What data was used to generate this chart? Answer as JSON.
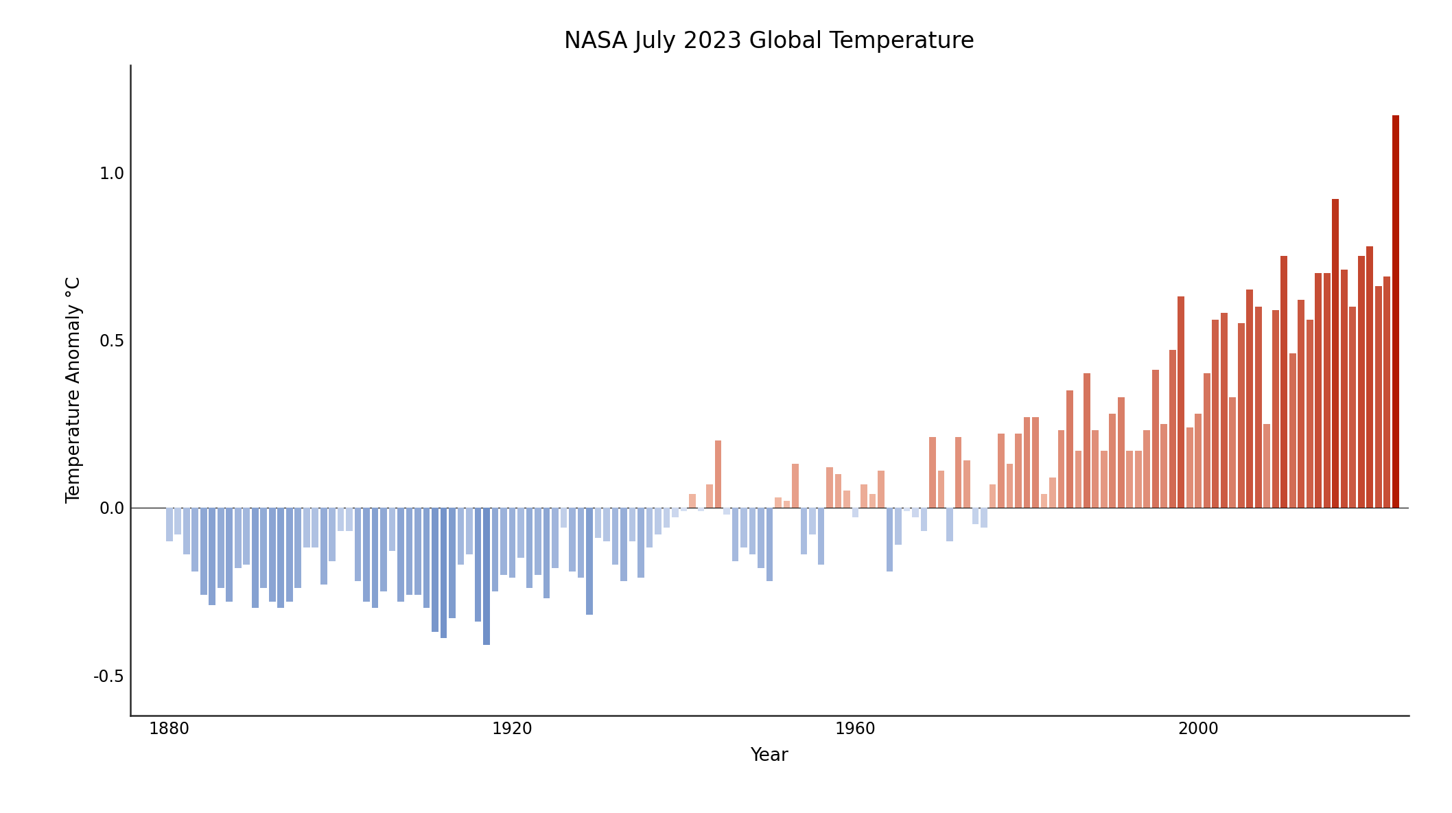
{
  "title": "NASA July 2023 Global Temperature",
  "xlabel": "Year",
  "ylabel": "Temperature Anomaly °C",
  "ylim": [
    -0.62,
    1.32
  ],
  "xlim": [
    1875.5,
    2024.5
  ],
  "years": [
    1880,
    1881,
    1882,
    1883,
    1884,
    1885,
    1886,
    1887,
    1888,
    1889,
    1890,
    1891,
    1892,
    1893,
    1894,
    1895,
    1896,
    1897,
    1898,
    1899,
    1900,
    1901,
    1902,
    1903,
    1904,
    1905,
    1906,
    1907,
    1908,
    1909,
    1910,
    1911,
    1912,
    1913,
    1914,
    1915,
    1916,
    1917,
    1918,
    1919,
    1920,
    1921,
    1922,
    1923,
    1924,
    1925,
    1926,
    1927,
    1928,
    1929,
    1930,
    1931,
    1932,
    1933,
    1934,
    1935,
    1936,
    1937,
    1938,
    1939,
    1940,
    1941,
    1942,
    1943,
    1944,
    1945,
    1946,
    1947,
    1948,
    1949,
    1950,
    1951,
    1952,
    1953,
    1954,
    1955,
    1956,
    1957,
    1958,
    1959,
    1960,
    1961,
    1962,
    1963,
    1964,
    1965,
    1966,
    1967,
    1968,
    1969,
    1970,
    1971,
    1972,
    1973,
    1974,
    1975,
    1976,
    1977,
    1978,
    1979,
    1980,
    1981,
    1982,
    1983,
    1984,
    1985,
    1986,
    1987,
    1988,
    1989,
    1990,
    1991,
    1992,
    1993,
    1994,
    1995,
    1996,
    1997,
    1998,
    1999,
    2000,
    2001,
    2002,
    2003,
    2004,
    2005,
    2006,
    2007,
    2008,
    2009,
    2010,
    2011,
    2012,
    2013,
    2014,
    2015,
    2016,
    2017,
    2018,
    2019,
    2020,
    2021,
    2022,
    2023
  ],
  "anomalies": [
    -0.1,
    -0.08,
    -0.14,
    -0.19,
    -0.26,
    -0.29,
    -0.24,
    -0.28,
    -0.18,
    -0.17,
    -0.3,
    -0.24,
    -0.28,
    -0.3,
    -0.28,
    -0.24,
    -0.12,
    -0.12,
    -0.23,
    -0.16,
    -0.07,
    -0.07,
    -0.22,
    -0.28,
    -0.3,
    -0.25,
    -0.13,
    -0.28,
    -0.26,
    -0.26,
    -0.3,
    -0.37,
    -0.39,
    -0.33,
    -0.17,
    -0.14,
    -0.34,
    -0.41,
    -0.25,
    -0.2,
    -0.21,
    -0.15,
    -0.24,
    -0.2,
    -0.27,
    -0.18,
    -0.06,
    -0.19,
    -0.21,
    -0.32,
    -0.09,
    -0.1,
    -0.17,
    -0.22,
    -0.1,
    -0.21,
    -0.12,
    -0.08,
    -0.06,
    -0.03,
    -0.01,
    0.04,
    -0.01,
    0.07,
    0.2,
    -0.02,
    -0.16,
    -0.12,
    -0.14,
    -0.18,
    -0.22,
    0.03,
    0.02,
    0.13,
    -0.14,
    -0.08,
    -0.17,
    0.12,
    0.1,
    0.05,
    -0.03,
    0.07,
    0.04,
    0.11,
    -0.19,
    -0.11,
    -0.01,
    -0.03,
    -0.07,
    0.21,
    0.11,
    -0.1,
    0.21,
    0.14,
    -0.05,
    -0.06,
    0.07,
    0.22,
    0.13,
    0.22,
    0.27,
    0.27,
    0.04,
    0.09,
    0.23,
    0.35,
    0.17,
    0.4,
    0.23,
    0.17,
    0.28,
    0.33,
    0.17,
    0.17,
    0.23,
    0.41,
    0.25,
    0.47,
    0.63,
    0.24,
    0.28,
    0.4,
    0.56,
    0.58,
    0.33,
    0.55,
    0.65,
    0.6,
    0.25,
    0.59,
    0.75,
    0.46,
    0.62,
    0.56,
    0.7,
    0.7,
    0.92,
    0.71,
    0.6,
    0.75,
    0.78,
    0.66,
    0.69,
    1.17
  ],
  "neg_color_strong": "#7090c8",
  "neg_color_weak": "#dde5f5",
  "pos_color_strong": "#b21a00",
  "pos_color_weak": "#f5c4b0",
  "background_color": "#ffffff",
  "title_fontsize": 24,
  "axis_fontsize": 19,
  "tick_fontsize": 17,
  "xticks": [
    1880,
    1920,
    1960,
    2000
  ],
  "yticks": [
    -0.5,
    0.0,
    0.5,
    1.0
  ]
}
